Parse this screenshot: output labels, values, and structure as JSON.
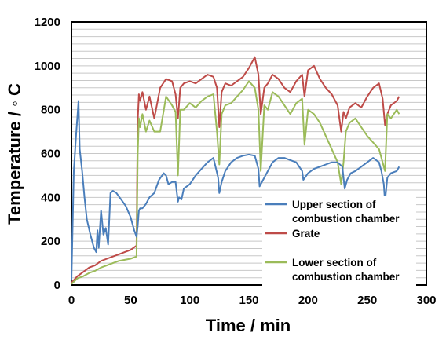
{
  "chart_data": {
    "type": "line",
    "xlabel": "Time / min",
    "ylabel": "Temperature / ◦ C",
    "xlim": [
      0,
      300
    ],
    "ylim": [
      0,
      1200
    ],
    "xticks": [
      "0",
      "50",
      "100",
      "150",
      "200",
      "250",
      "300"
    ],
    "yticks": [
      "0",
      "200",
      "400",
      "600",
      "800",
      "1000",
      "1200"
    ],
    "grid": "horizontal",
    "legend_position": "bottom-right",
    "series": [
      {
        "name": "Upper section of combustion chamber",
        "color": "#4a7ebb",
        "x": [
          0,
          2,
          4,
          6,
          7,
          9,
          11,
          13,
          16,
          19,
          21,
          22,
          23,
          25,
          27,
          29,
          31,
          33,
          35,
          38,
          42,
          46,
          50,
          53,
          55,
          56,
          57,
          58,
          60,
          63,
          66,
          70,
          74,
          78,
          80,
          82,
          85,
          88,
          90,
          91,
          93,
          95,
          100,
          105,
          110,
          115,
          120,
          124,
          125,
          127,
          130,
          135,
          140,
          145,
          150,
          155,
          158,
          159,
          162,
          166,
          170,
          175,
          180,
          185,
          190,
          195,
          196,
          200,
          205,
          210,
          215,
          220,
          225,
          229,
          231,
          233,
          236,
          240,
          245,
          250,
          255,
          260,
          262,
          264,
          265,
          267,
          270,
          275,
          277
        ],
        "values": [
          20,
          520,
          690,
          840,
          620,
          520,
          400,
          300,
          230,
          170,
          150,
          250,
          170,
          340,
          230,
          260,
          185,
          420,
          430,
          420,
          390,
          360,
          310,
          250,
          220,
          270,
          340,
          350,
          350,
          370,
          400,
          420,
          480,
          510,
          500,
          460,
          470,
          470,
          380,
          400,
          390,
          440,
          460,
          500,
          530,
          560,
          580,
          490,
          420,
          470,
          520,
          560,
          580,
          590,
          595,
          590,
          530,
          450,
          480,
          520,
          560,
          580,
          580,
          570,
          560,
          520,
          480,
          510,
          530,
          540,
          550,
          560,
          560,
          540,
          440,
          480,
          510,
          520,
          540,
          560,
          580,
          560,
          520,
          460,
          380,
          490,
          510,
          520,
          540
        ]
      },
      {
        "name": "Grate",
        "color": "#be4b48",
        "x": [
          0,
          5,
          10,
          15,
          20,
          25,
          30,
          35,
          40,
          45,
          50,
          55,
          56,
          57,
          58,
          60,
          63,
          66,
          70,
          75,
          80,
          85,
          88,
          90,
          92,
          95,
          100,
          105,
          110,
          115,
          120,
          123,
          125,
          127,
          130,
          135,
          140,
          145,
          150,
          155,
          158,
          160,
          163,
          166,
          170,
          175,
          180,
          185,
          190,
          195,
          197,
          200,
          205,
          210,
          215,
          220,
          225,
          228,
          230,
          232,
          235,
          240,
          245,
          250,
          255,
          260,
          263,
          265,
          267,
          270,
          275,
          277
        ],
        "values": [
          10,
          40,
          60,
          80,
          90,
          110,
          120,
          130,
          140,
          150,
          160,
          180,
          750,
          870,
          840,
          880,
          800,
          860,
          760,
          900,
          940,
          930,
          870,
          760,
          900,
          920,
          930,
          920,
          940,
          960,
          950,
          900,
          720,
          880,
          920,
          910,
          930,
          950,
          990,
          1040,
          960,
          780,
          900,
          920,
          960,
          940,
          900,
          880,
          930,
          960,
          860,
          980,
          1000,
          940,
          900,
          870,
          820,
          700,
          790,
          760,
          810,
          830,
          810,
          860,
          900,
          920,
          850,
          730,
          780,
          820,
          840,
          860
        ]
      },
      {
        "name": "Lower section of combustion chamber",
        "color": "#9bbb59",
        "x": [
          0,
          5,
          10,
          15,
          20,
          25,
          30,
          35,
          40,
          45,
          50,
          55,
          56,
          57,
          58,
          60,
          63,
          66,
          70,
          75,
          80,
          85,
          88,
          90,
          92,
          95,
          100,
          105,
          110,
          115,
          120,
          123,
          125,
          127,
          130,
          135,
          140,
          145,
          150,
          155,
          158,
          160,
          163,
          166,
          170,
          175,
          180,
          185,
          190,
          195,
          197,
          200,
          205,
          210,
          215,
          220,
          225,
          228,
          230,
          232,
          235,
          240,
          245,
          250,
          255,
          260,
          263,
          265,
          267,
          270,
          275,
          277
        ],
        "values": [
          5,
          30,
          40,
          55,
          65,
          80,
          90,
          100,
          110,
          115,
          120,
          130,
          600,
          760,
          720,
          780,
          700,
          750,
          700,
          700,
          860,
          820,
          790,
          500,
          800,
          800,
          830,
          810,
          840,
          860,
          870,
          700,
          550,
          780,
          820,
          830,
          860,
          890,
          930,
          900,
          800,
          520,
          820,
          800,
          880,
          860,
          820,
          780,
          830,
          850,
          640,
          800,
          780,
          740,
          680,
          620,
          560,
          460,
          560,
          700,
          740,
          760,
          720,
          680,
          650,
          620,
          560,
          520,
          780,
          760,
          800,
          780
        ]
      }
    ]
  }
}
